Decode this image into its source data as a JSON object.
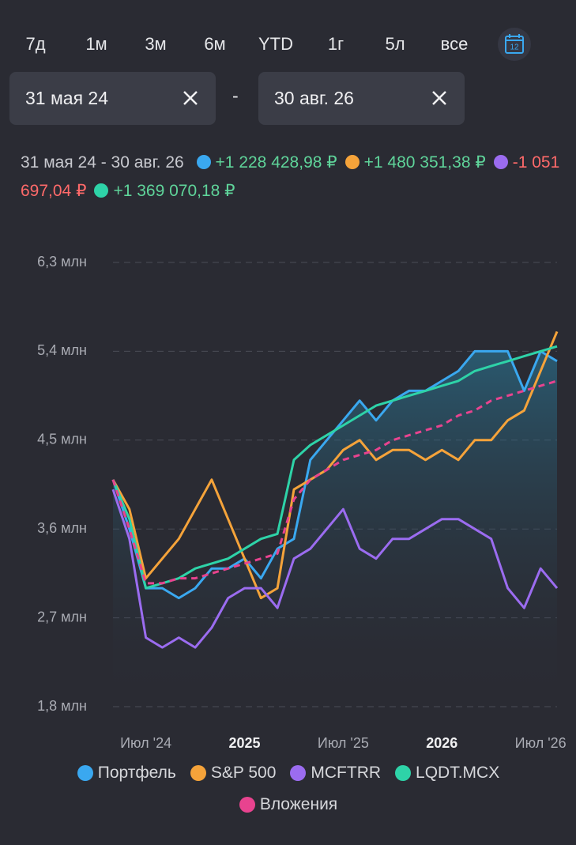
{
  "periods": [
    "7д",
    "1м",
    "3м",
    "6м",
    "YTD",
    "1г",
    "5л",
    "все"
  ],
  "calendar_day": "12",
  "date_from": "31 мая 24",
  "separator": "-",
  "date_to": "30 авг. 26",
  "summary": {
    "range": "31 мая 24 - 30 авг. 26",
    "items": [
      {
        "color": "#3aa8f0",
        "text": "+1 228 428,98 ₽",
        "tone": "up"
      },
      {
        "color": "#f5a33a",
        "text": "+1 480 351,38 ₽",
        "tone": "up"
      },
      {
        "color": "#9b6cf0",
        "text": "-1 051 697,04 ₽",
        "tone": "down"
      },
      {
        "color": "#2ed3a8",
        "text": "+1 369 070,18 ₽",
        "tone": "up"
      }
    ]
  },
  "chart_data": {
    "type": "line",
    "x": [
      "2024-05",
      "2024-06",
      "2024-07",
      "2024-08",
      "2024-09",
      "2024-10",
      "2024-11",
      "2024-12",
      "2025-01",
      "2025-02",
      "2025-03",
      "2025-04",
      "2025-05",
      "2025-06",
      "2025-07",
      "2025-08",
      "2025-09",
      "2025-10",
      "2025-11",
      "2025-12",
      "2026-01",
      "2026-02",
      "2026-03",
      "2026-04",
      "2026-05",
      "2026-06",
      "2026-07",
      "2026-08"
    ],
    "xlim": [
      "2024-05",
      "2026-08"
    ],
    "xticks": [
      {
        "value": "2024-07",
        "label": "Июл '24"
      },
      {
        "value": "2025-01",
        "label": "2025"
      },
      {
        "value": "2025-07",
        "label": "Июл '25"
      },
      {
        "value": "2026-01",
        "label": "2026"
      },
      {
        "value": "2026-07",
        "label": "Июл '26"
      }
    ],
    "ylim": [
      1.8,
      6.3
    ],
    "yticks": [
      {
        "value": 1.8,
        "label": "1,8 млн"
      },
      {
        "value": 2.7,
        "label": "2,7 млн"
      },
      {
        "value": 3.6,
        "label": "3,6 млн"
      },
      {
        "value": 4.5,
        "label": "4,5 млн"
      },
      {
        "value": 5.4,
        "label": "5,4 млн"
      },
      {
        "value": 6.3,
        "label": "6,3 млн"
      }
    ],
    "grid": true,
    "series": [
      {
        "name": "Портфель",
        "color": "#3aa8f0",
        "area": true,
        "values": [
          4.1,
          3.6,
          3.0,
          3.0,
          2.9,
          3.0,
          3.2,
          3.2,
          3.3,
          3.1,
          3.4,
          3.5,
          4.3,
          4.5,
          4.7,
          4.9,
          4.7,
          4.9,
          5.0,
          5.0,
          5.1,
          5.2,
          5.4,
          5.4,
          5.4,
          5.0,
          5.4,
          5.3
        ]
      },
      {
        "name": "S&P 500",
        "color": "#f5a33a",
        "values": [
          4.1,
          3.8,
          3.1,
          3.3,
          3.5,
          3.8,
          4.1,
          3.7,
          3.3,
          2.9,
          3.0,
          4.0,
          4.1,
          4.2,
          4.4,
          4.5,
          4.3,
          4.4,
          4.4,
          4.3,
          4.4,
          4.3,
          4.5,
          4.5,
          4.7,
          4.8,
          5.2,
          5.6
        ]
      },
      {
        "name": "MCFTRR",
        "color": "#9b6cf0",
        "values": [
          4.0,
          3.5,
          2.5,
          2.4,
          2.5,
          2.4,
          2.6,
          2.9,
          3.0,
          3.0,
          2.8,
          3.3,
          3.4,
          3.6,
          3.8,
          3.4,
          3.3,
          3.5,
          3.5,
          3.6,
          3.7,
          3.7,
          3.6,
          3.5,
          3.0,
          2.8,
          3.2,
          3.0
        ]
      },
      {
        "name": "LQDT.MCX",
        "color": "#2ed3a8",
        "values": [
          4.1,
          3.7,
          3.0,
          3.05,
          3.1,
          3.2,
          3.25,
          3.3,
          3.4,
          3.5,
          3.55,
          4.3,
          4.45,
          4.55,
          4.65,
          4.75,
          4.85,
          4.9,
          4.95,
          5.0,
          5.05,
          5.1,
          5.2,
          5.25,
          5.3,
          5.35,
          5.4,
          5.45
        ]
      },
      {
        "name": "Вложения",
        "color": "#e8438f",
        "dashed": true,
        "values": [
          4.1,
          3.6,
          3.05,
          3.05,
          3.1,
          3.1,
          3.15,
          3.2,
          3.25,
          3.3,
          3.35,
          3.9,
          4.1,
          4.2,
          4.3,
          4.35,
          4.4,
          4.5,
          4.55,
          4.6,
          4.65,
          4.75,
          4.8,
          4.9,
          4.95,
          5.0,
          5.05,
          5.1
        ]
      }
    ]
  }
}
